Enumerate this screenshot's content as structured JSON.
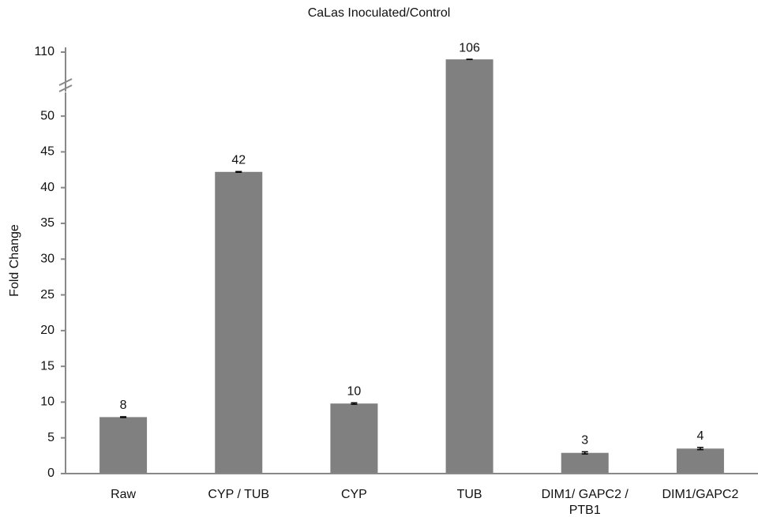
{
  "chart_data": {
    "type": "bar",
    "title": "CaLas Inoculated/Control",
    "y_label": "Fold Change",
    "categories": [
      "Raw",
      "CYP / TUB",
      "CYP",
      "TUB",
      "DIM1/ GAPC2 /\nPTB1",
      "DIM1/GAPC2"
    ],
    "values": [
      7.9,
      42.2,
      9.8,
      106,
      2.9,
      3.5
    ],
    "value_labels": [
      "8",
      "42",
      "10",
      "106",
      "3",
      "4"
    ],
    "errors": [
      0.05,
      0.05,
      0.1,
      0.05,
      0.15,
      0.15
    ],
    "color": "#808080",
    "ylim": [
      0,
      110
    ],
    "axis_break": [
      52,
      90
    ],
    "yticks": [
      0,
      5,
      10,
      15,
      20,
      25,
      30,
      35,
      40,
      45,
      50,
      110
    ],
    "grid": false
  }
}
